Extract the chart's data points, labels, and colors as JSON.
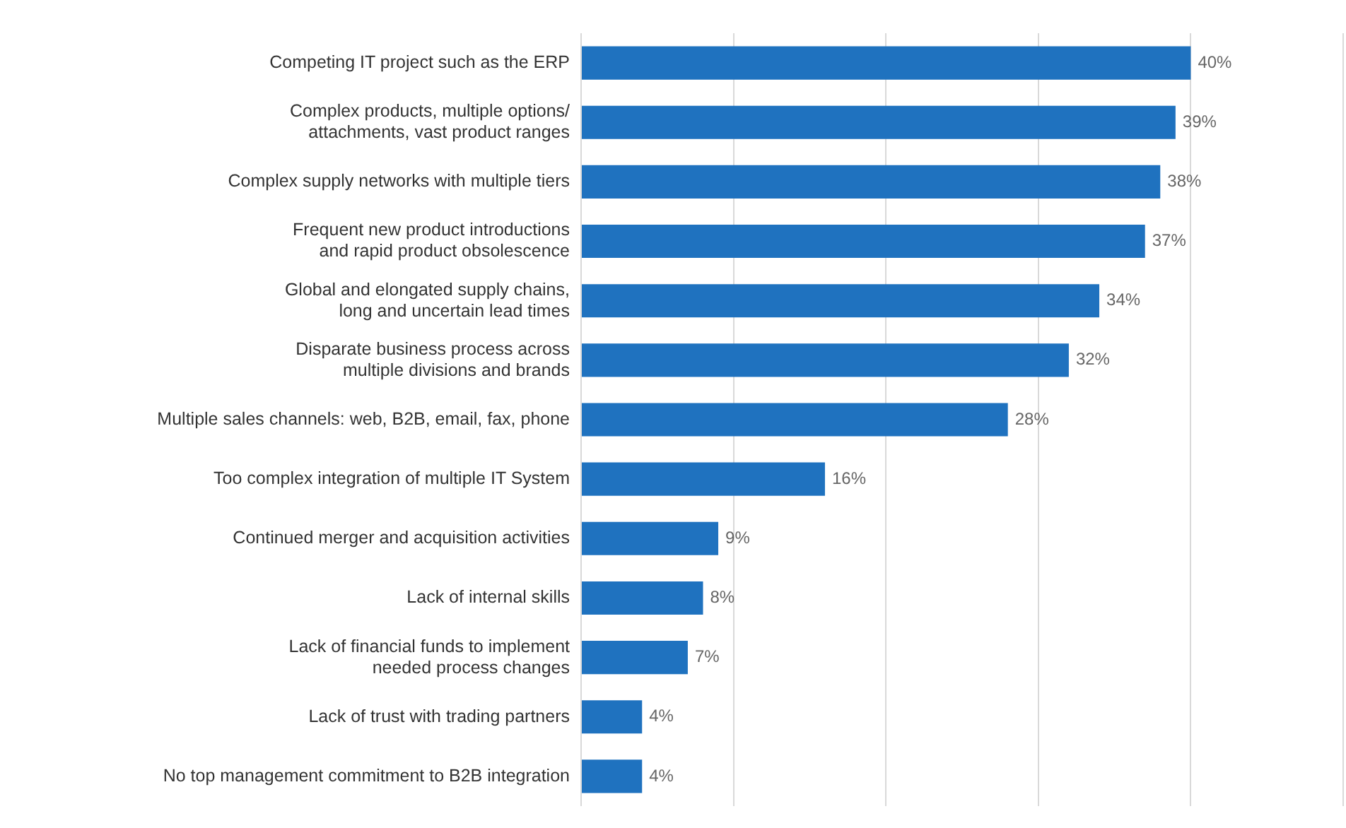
{
  "chart_data": {
    "type": "bar",
    "orientation": "horizontal",
    "categories": [
      "Competing IT project such as the ERP",
      "Complex products, multiple options/\nattachments, vast product ranges",
      "Complex supply networks with multiple tiers",
      "Frequent new product introductions\nand rapid product obsolescence",
      "Global and elongated supply chains,\nlong and uncertain lead times",
      "Disparate business process across\nmultiple divisions and brands",
      "Multiple sales channels: web, B2B, email, fax, phone",
      "Too complex integration of multiple IT System",
      "Continued merger and acquisition activities",
      "Lack of internal skills",
      "Lack of financial funds to implement\nneeded process changes",
      "Lack of trust with trading partners",
      "No top management commitment to B2B integration"
    ],
    "values": [
      40,
      39,
      38,
      37,
      34,
      32,
      28,
      16,
      9,
      8,
      7,
      4,
      4
    ],
    "value_labels": [
      "40%",
      "39%",
      "38%",
      "37%",
      "34%",
      "32%",
      "28%",
      "16%",
      "9%",
      "8%",
      "7%",
      "4%",
      "4%"
    ],
    "color": "#1f72bf",
    "xlim": [
      0,
      50
    ],
    "xticks": [
      {
        "value": 0,
        "label": null
      },
      {
        "value": 10,
        "label": null
      },
      {
        "value": 20,
        "label": null
      },
      {
        "value": 30,
        "label": null
      },
      {
        "value": 40,
        "label": null
      },
      {
        "value": 50,
        "label": null
      }
    ],
    "grid": "x",
    "tick_labels": "y",
    "legend": false
  }
}
